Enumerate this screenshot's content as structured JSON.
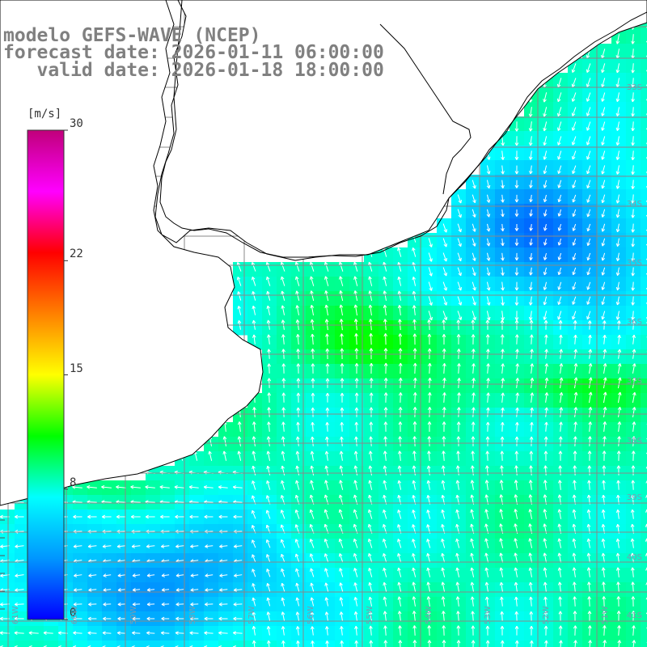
{
  "title": {
    "line1": "modelo GEFS-WAVE (NCEP)",
    "line2": "forecast date: 2026-01-11 06:00:00",
    "line3": "   valid date: 2026-01-18 18:00:00"
  },
  "colorbar": {
    "unit": "[m/s]",
    "ticks": [
      {
        "value": 30,
        "label": "30"
      },
      {
        "value": 22,
        "label": "22"
      },
      {
        "value": 15,
        "label": "15"
      },
      {
        "value": 8,
        "label": "8"
      },
      {
        "value": 0,
        "label": "0"
      }
    ],
    "range": [
      0,
      30
    ],
    "colormap": [
      "#0000ff",
      "#0096ff",
      "#00ffff",
      "#00ff00",
      "#ffff00",
      "#ff8000",
      "#ff0000",
      "#ff00ff",
      "#c0007a"
    ]
  },
  "axes": {
    "lat_labels": [
      "33S",
      "34S",
      "35S",
      "36S",
      "37S",
      "38S",
      "39S",
      "40S",
      "41S"
    ],
    "lon_labels": [
      "61W",
      "60W",
      "59W",
      "58W",
      "57W",
      "56W",
      "55W",
      "54W",
      "53W",
      "52W",
      "51W"
    ]
  },
  "chart_data": {
    "type": "heatmap",
    "title": "modelo GEFS-WAVE (NCEP)",
    "variable": "[m/s]",
    "lon_range": [
      -62.4,
      -51.0
    ],
    "lat_range": [
      -41.3,
      -31.3
    ],
    "value_range": [
      0,
      30
    ],
    "grid": true,
    "typical_values": {
      "coastal_south": 9,
      "central_band": 11,
      "northeast": 4,
      "southwest": 5
    }
  }
}
